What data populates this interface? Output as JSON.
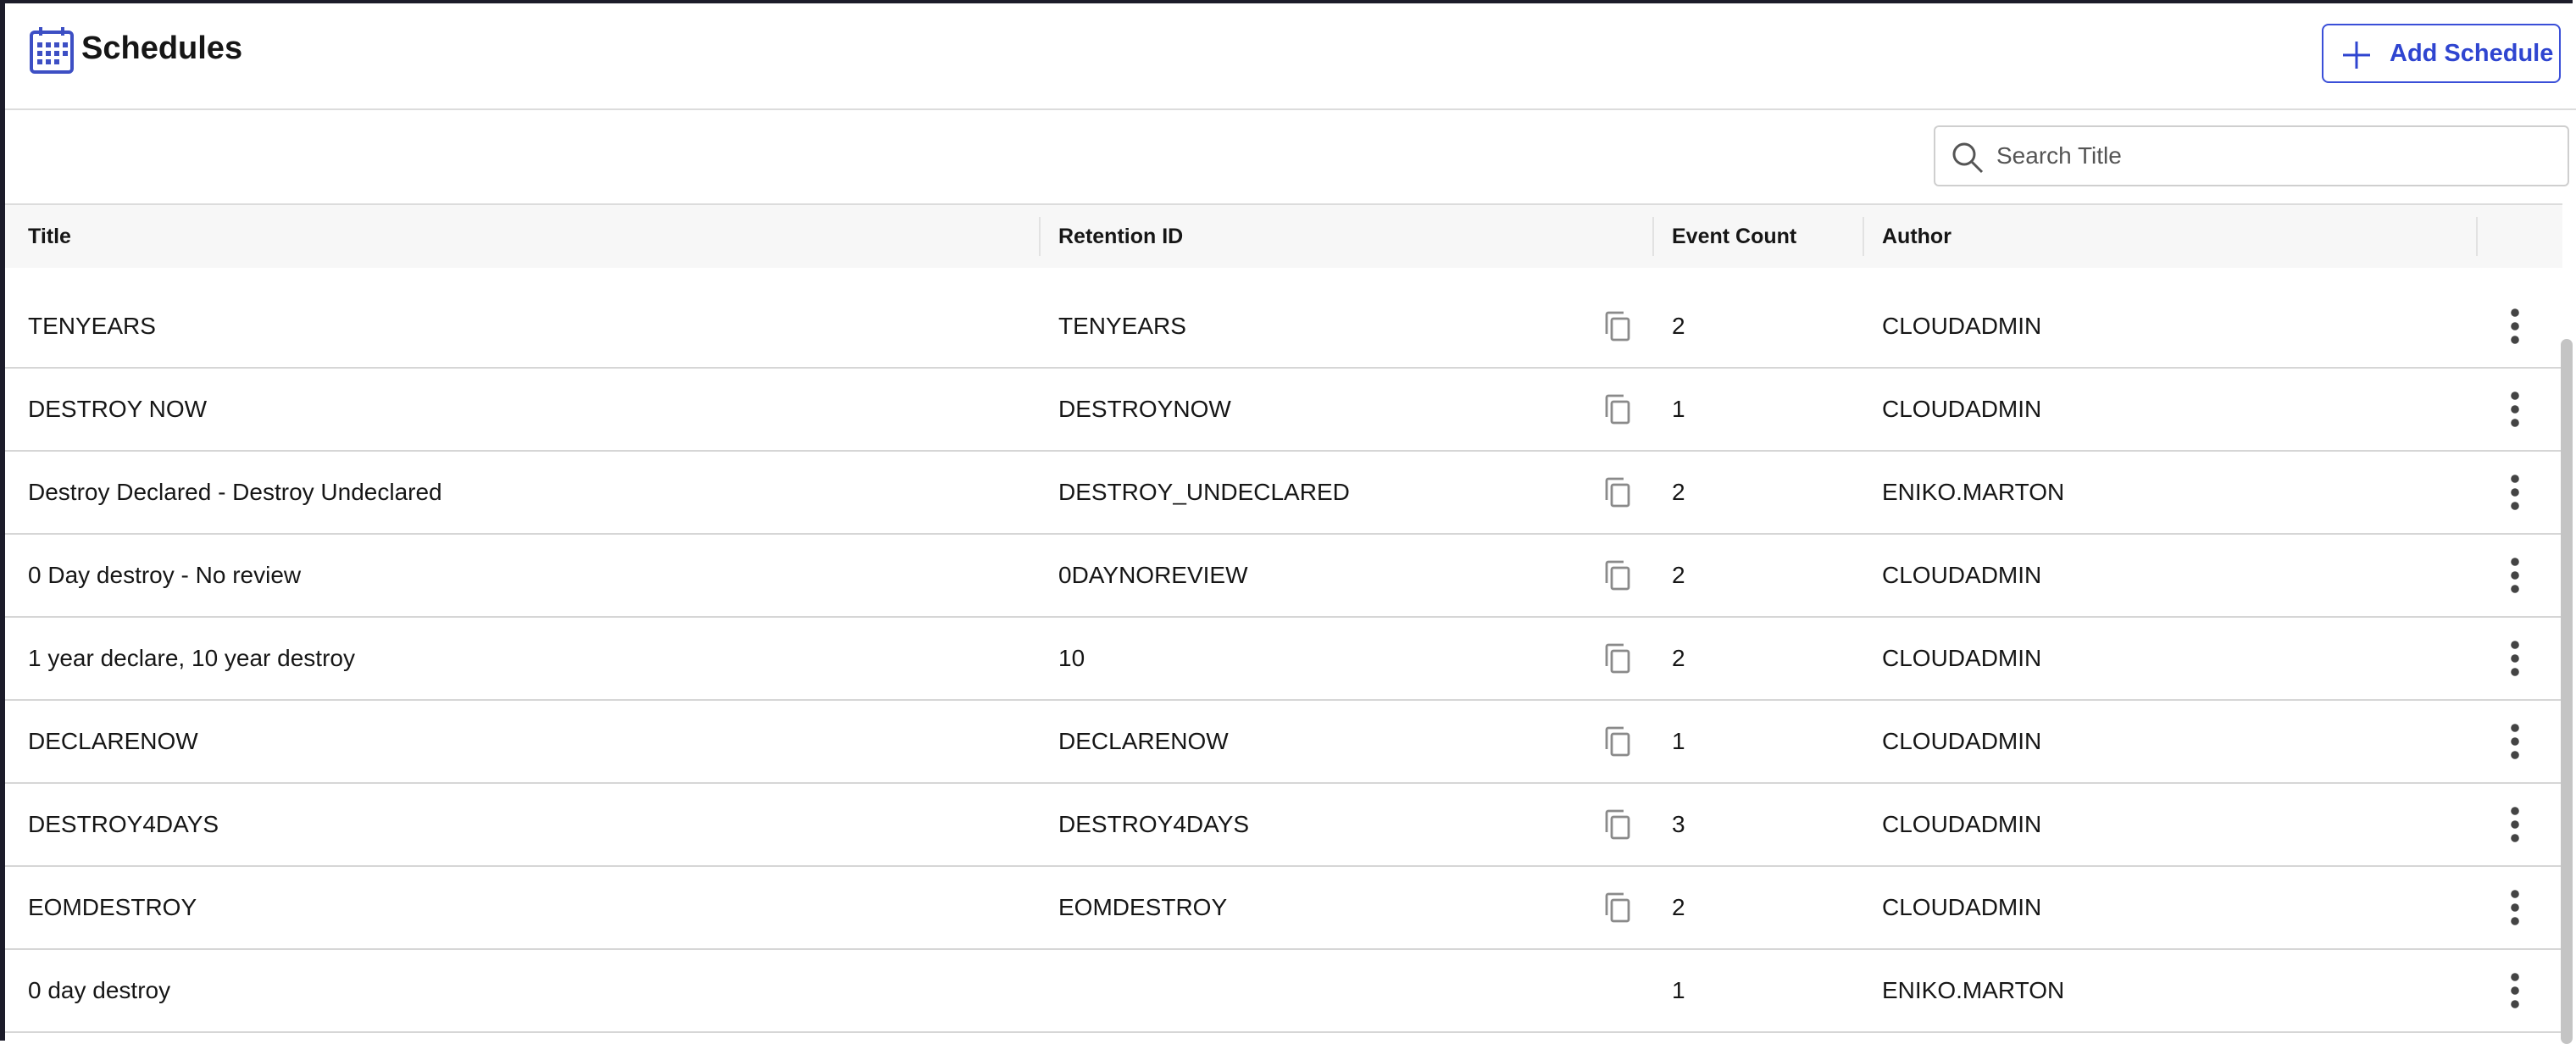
{
  "header": {
    "title": "Schedules",
    "button": "Add Schedule"
  },
  "search": {
    "placeholder": "Search Title"
  },
  "table": {
    "columns": [
      "Title",
      "Retention ID",
      "Event Count",
      "Author"
    ],
    "rows": [
      [
        "TENYEARS",
        "TENYEARS",
        "2",
        "CLOUDADMIN"
      ],
      [
        "DESTROY NOW",
        "DESTROYNOW",
        "1",
        "CLOUDADMIN"
      ],
      [
        "Destroy Declared - Destroy Undeclared",
        "DESTROY_UNDECLARED",
        "2",
        "ENIKO.MARTON"
      ],
      [
        "0 Day destroy - No review",
        "0DAYNOREVIEW",
        "2",
        "CLOUDADMIN"
      ],
      [
        "1 year declare, 10 year destroy",
        "10",
        "2",
        "CLOUDADMIN"
      ],
      [
        "DECLARENOW",
        "DECLARENOW",
        "1",
        "CLOUDADMIN"
      ],
      [
        "DESTROY4DAYS",
        "DESTROY4DAYS",
        "3",
        "CLOUDADMIN"
      ],
      [
        "EOMDESTROY",
        "EOMDESTROY",
        "2",
        "CLOUDADMIN"
      ],
      [
        "0 day destroy",
        null,
        "1",
        "ENIKO.MARTON"
      ]
    ]
  }
}
